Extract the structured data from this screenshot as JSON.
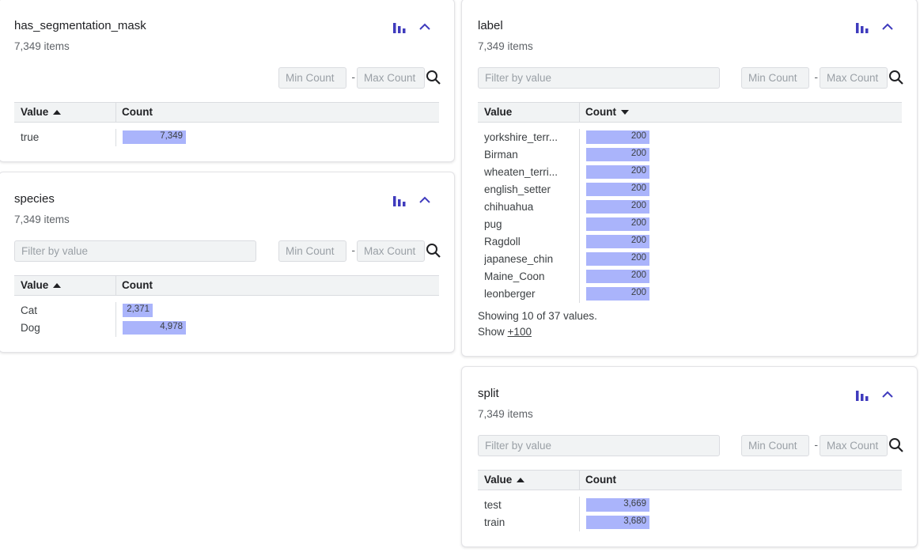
{
  "filter_placeholder": "Filter by value",
  "min_placeholder": "Min Count",
  "max_placeholder": "Max Count",
  "header_value": "Value",
  "header_count": "Count",
  "bar_color": "#aab4fb",
  "accent_color": "#3f3bbd",
  "cards": {
    "seg": {
      "title": "has_segmentation_mask",
      "subtitle": "7,349 items",
      "rows": [
        {
          "value": "true",
          "count": 7349,
          "count_label": "7,349"
        }
      ]
    },
    "species": {
      "title": "species",
      "subtitle": "7,349 items",
      "rows": [
        {
          "value": "Cat",
          "count": 2371,
          "count_label": "2,371"
        },
        {
          "value": "Dog",
          "count": 4978,
          "count_label": "4,978"
        }
      ]
    },
    "label": {
      "title": "label",
      "subtitle": "7,349 items",
      "rows": [
        {
          "value": "yorkshire_terr...",
          "count": 200,
          "count_label": "200"
        },
        {
          "value": "Birman",
          "count": 200,
          "count_label": "200"
        },
        {
          "value": "wheaten_terri...",
          "count": 200,
          "count_label": "200"
        },
        {
          "value": "english_setter",
          "count": 200,
          "count_label": "200"
        },
        {
          "value": "chihuahua",
          "count": 200,
          "count_label": "200"
        },
        {
          "value": "pug",
          "count": 200,
          "count_label": "200"
        },
        {
          "value": "Ragdoll",
          "count": 200,
          "count_label": "200"
        },
        {
          "value": "japanese_chin",
          "count": 200,
          "count_label": "200"
        },
        {
          "value": "Maine_Coon",
          "count": 200,
          "count_label": "200"
        },
        {
          "value": "leonberger",
          "count": 200,
          "count_label": "200"
        }
      ],
      "showing_text": "Showing 10 of 37 values.",
      "show_prefix": "Show",
      "show_more": "+100"
    },
    "split": {
      "title": "split",
      "subtitle": "7,349 items",
      "rows": [
        {
          "value": "test",
          "count": 3669,
          "count_label": "3,669"
        },
        {
          "value": "train",
          "count": 3680,
          "count_label": "3,680"
        }
      ]
    }
  }
}
